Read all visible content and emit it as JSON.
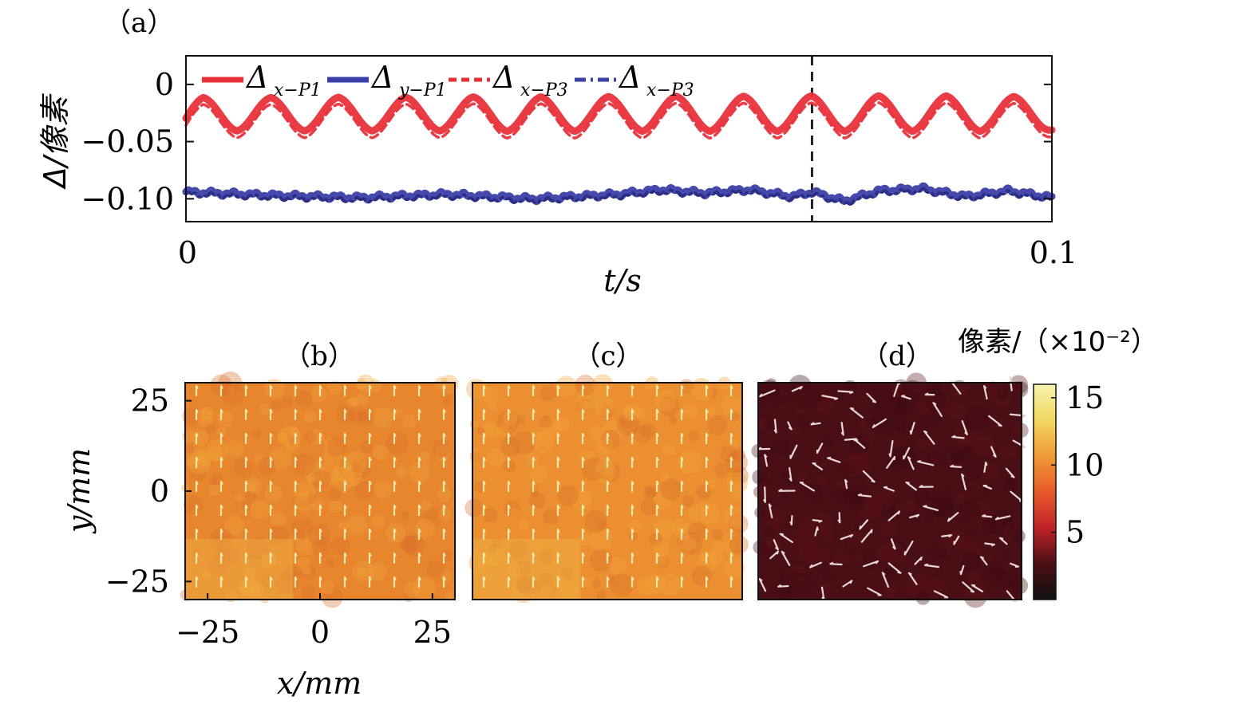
{
  "labels": {
    "panel_a": "（a）",
    "panel_b": "（b）",
    "panel_c": "（c）",
    "panel_d": "（d）",
    "a_ylabel": "Δ/像素",
    "a_xlabel": "t/s",
    "bcd_xlabel": "x/mm",
    "bcd_ylabel": "y/mm",
    "colorbar_title": "像素/（×10⁻²）"
  },
  "chart_data": [
    {
      "type": "line",
      "panel": "(a)",
      "xlabel": "t/s",
      "ylabel": "Δ/像素",
      "xlim": [
        0,
        0.1
      ],
      "ylim": [
        -0.12,
        0.025
      ],
      "x_ticks": [
        "0",
        "0.1"
      ],
      "y_ticks": [
        {
          "value": 0,
          "label": "0"
        },
        {
          "value": -0.05,
          "label": "−0.05"
        },
        {
          "value": -0.1,
          "label": "−0.10"
        }
      ],
      "legend_placement": "top-left",
      "reference_line_x": 0.0723,
      "series_period_s": 0.0078,
      "series": [
        {
          "name": "Δx−P1",
          "legend_main": "Δ",
          "legend_sub": "x−P1",
          "color": "#e8323a",
          "style": "solid",
          "x": [
            0,
            0.002,
            0.0059,
            0.0098,
            0.0137,
            0.0176,
            0.0215,
            0.0254,
            0.0293,
            0.0332,
            0.0371,
            0.041,
            0.0449,
            0.0488,
            0.0527,
            0.0566,
            0.0605,
            0.0644,
            0.0683,
            0.0722,
            0.0761,
            0.08,
            0.0839,
            0.0878,
            0.0917,
            0.0956,
            0.1
          ],
          "values": [
            -0.038,
            -0.015,
            -0.04,
            -0.015,
            -0.04,
            -0.014,
            -0.04,
            -0.014,
            -0.04,
            -0.013,
            -0.041,
            -0.013,
            -0.041,
            -0.012,
            -0.041,
            -0.011,
            -0.041,
            -0.011,
            -0.041,
            -0.01,
            -0.041,
            -0.01,
            -0.041,
            -0.01,
            -0.041,
            -0.012,
            -0.04
          ]
        },
        {
          "name": "Δy−P1",
          "legend_main": "Δ",
          "legend_sub": "y−P1",
          "color": "#3b3fa8",
          "style": "solid",
          "x": [
            0,
            0.01,
            0.02,
            0.03,
            0.04,
            0.05,
            0.055,
            0.06,
            0.065,
            0.07,
            0.0723,
            0.076,
            0.08,
            0.085,
            0.09,
            0.095,
            0.1
          ],
          "values": [
            -0.094,
            -0.097,
            -0.099,
            -0.096,
            -0.1,
            -0.096,
            -0.092,
            -0.095,
            -0.092,
            -0.098,
            -0.094,
            -0.102,
            -0.093,
            -0.091,
            -0.098,
            -0.093,
            -0.099
          ]
        },
        {
          "name": "Δx−P3",
          "legend_main": "Δ",
          "legend_sub": "x−P3",
          "color": "#e8323a",
          "style": "dashed",
          "x": [
            0,
            0.002,
            0.0059,
            0.0098,
            0.0137,
            0.0176,
            0.0215,
            0.0254,
            0.0293,
            0.0332,
            0.0371,
            0.041,
            0.0449,
            0.0488,
            0.0527,
            0.0566,
            0.0605,
            0.0644,
            0.0683,
            0.0722,
            0.0761,
            0.08,
            0.0839,
            0.0878,
            0.0917,
            0.0956,
            0.1
          ],
          "values": [
            -0.044,
            -0.021,
            -0.046,
            -0.021,
            -0.046,
            -0.02,
            -0.046,
            -0.02,
            -0.046,
            -0.019,
            -0.047,
            -0.019,
            -0.047,
            -0.018,
            -0.047,
            -0.017,
            -0.047,
            -0.017,
            -0.047,
            -0.016,
            -0.047,
            -0.016,
            -0.047,
            -0.016,
            -0.047,
            -0.018,
            -0.046
          ]
        },
        {
          "name": "Δx−P3",
          "legend_main": "Δ",
          "legend_sub": "x−P3",
          "color": "#3b3fa8",
          "style": "dashdot",
          "x": [
            0,
            0.01,
            0.02,
            0.03,
            0.04,
            0.05,
            0.055,
            0.06,
            0.065,
            0.07,
            0.0723,
            0.076,
            0.08,
            0.085,
            0.09,
            0.095,
            0.1
          ],
          "values": [
            -0.096,
            -0.099,
            -0.101,
            -0.098,
            -0.102,
            -0.098,
            -0.094,
            -0.097,
            -0.094,
            -0.1,
            -0.096,
            -0.104,
            -0.095,
            -0.093,
            -0.1,
            -0.095,
            -0.101
          ]
        }
      ]
    },
    {
      "type": "heatmap",
      "panel": "(b)",
      "xlabel": "x/mm",
      "ylabel": "y/mm",
      "xlim": [
        -30,
        30
      ],
      "ylim": [
        -30,
        30
      ],
      "x_ticks": [
        "−25",
        "0",
        "25"
      ],
      "y_ticks": [
        "25",
        "0",
        "−25"
      ],
      "base_color": "#e8862e",
      "mean_value_x1e-2": 10.5,
      "arrow_grid": {
        "cols": 11,
        "rows": 9,
        "direction": "up",
        "color": "#f6e7a8"
      }
    },
    {
      "type": "heatmap",
      "panel": "(c)",
      "xlim": [
        -30,
        30
      ],
      "ylim": [
        -30,
        30
      ],
      "base_color": "#eb8f30",
      "mean_value_x1e-2": 11,
      "arrow_grid": {
        "cols": 11,
        "rows": 9,
        "direction": "up",
        "color": "#f6e7a8"
      }
    },
    {
      "type": "heatmap",
      "panel": "(d)",
      "xlim": [
        -30,
        30
      ],
      "ylim": [
        -30,
        30
      ],
      "base_color": "#4a0f14",
      "mean_value_x1e-2": 2,
      "arrow_grid": {
        "cols": 11,
        "rows": 9,
        "direction": "random",
        "color": "#e9d8d8"
      }
    },
    {
      "type": "colorbar",
      "title": "像素/（×10⁻²）",
      "range": [
        0,
        16
      ],
      "ticks": [
        "15",
        "10",
        "5"
      ],
      "tick_values": [
        15,
        10,
        5
      ],
      "colors": [
        "#111111",
        "#4a0f14",
        "#c0232a",
        "#e85a2a",
        "#ef9a35",
        "#f2d860",
        "#f7f3b0"
      ]
    }
  ]
}
